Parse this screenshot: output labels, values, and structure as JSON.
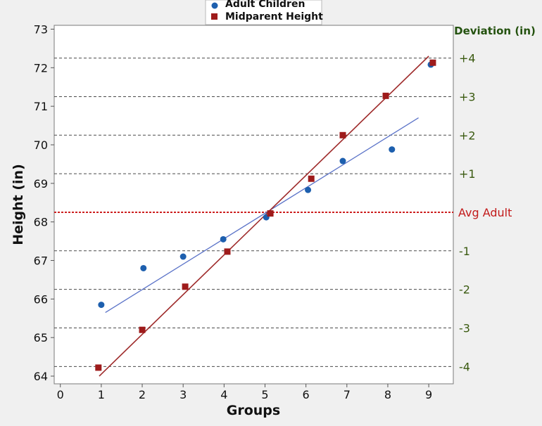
{
  "chart_data": {
    "type": "scatter",
    "xlabel": "Groups",
    "ylabel": "Height (in)",
    "right_axis_title": "Deviation (in)",
    "xlim": [
      -0.15,
      9.6
    ],
    "ylim": [
      63.8,
      73.1
    ],
    "x_ticks": [
      0,
      1,
      2,
      3,
      4,
      5,
      6,
      7,
      8,
      9
    ],
    "y_ticks": [
      64,
      65,
      66,
      67,
      68,
      69,
      70,
      71,
      72,
      73
    ],
    "grid": "horizontal dashed reference lines",
    "legend_position": "top-center",
    "average_line": {
      "label": "Avg Adult",
      "value": 68.25,
      "color": "#cc1f1f"
    },
    "deviation_lines": [
      {
        "label": "+4",
        "value": 72.25
      },
      {
        "label": "+3",
        "value": 71.25
      },
      {
        "label": "+2",
        "value": 70.25
      },
      {
        "label": "+1",
        "value": 69.25
      },
      {
        "label": "-1",
        "value": 67.25
      },
      {
        "label": "-2",
        "value": 66.25
      },
      {
        "label": "-3",
        "value": 65.25
      },
      {
        "label": "-4",
        "value": 64.25
      }
    ],
    "series": [
      {
        "name": "Adult Children",
        "marker": "circle",
        "color": "#1d5fae",
        "x": [
          1.0,
          2.03,
          3.0,
          3.98,
          5.03,
          6.05,
          6.9,
          8.1,
          9.05
        ],
        "y": [
          65.85,
          66.8,
          67.1,
          67.55,
          68.12,
          68.83,
          69.58,
          69.88,
          72.08
        ],
        "fit": {
          "x": [
            1.1,
            8.75
          ],
          "y": [
            65.65,
            70.7
          ],
          "color": "#5b73c8"
        }
      },
      {
        "name": "Midparent Height",
        "marker": "square",
        "color": "#9e1b1b",
        "x": [
          0.93,
          2.0,
          3.05,
          4.08,
          5.13,
          6.13,
          6.9,
          7.95,
          9.1
        ],
        "y": [
          64.22,
          65.2,
          66.32,
          67.23,
          68.22,
          69.12,
          70.25,
          71.27,
          72.13
        ],
        "fit": {
          "x": [
            0.95,
            9.0
          ],
          "y": [
            64.0,
            72.3
          ],
          "color": "#9e2a2a"
        }
      }
    ]
  }
}
